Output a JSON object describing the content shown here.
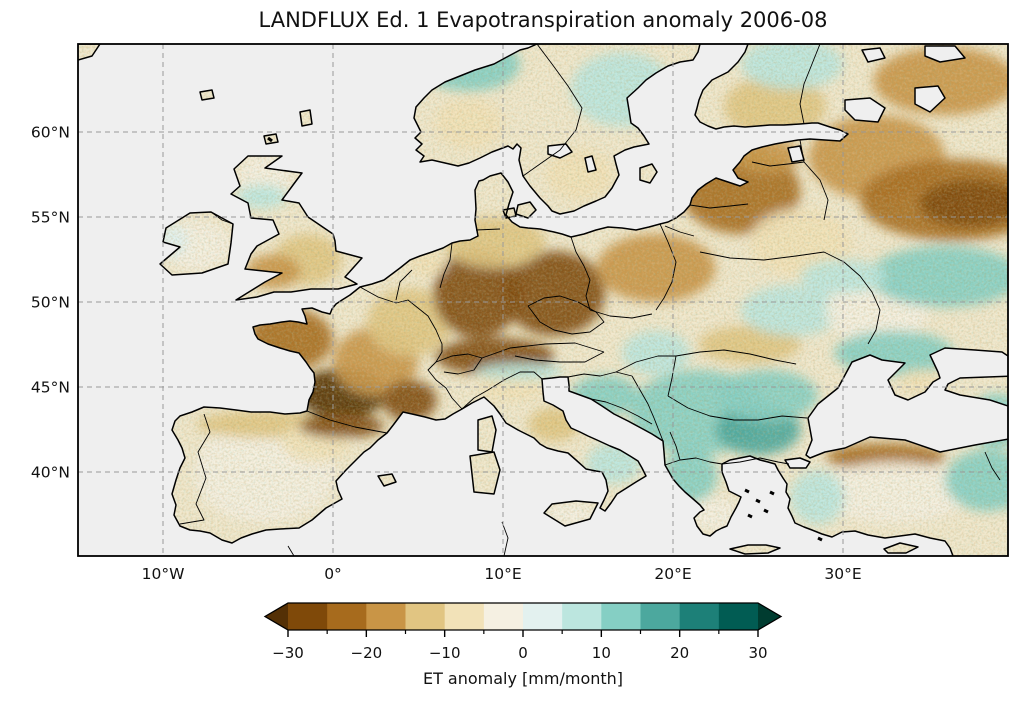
{
  "title": "LANDFLUX Ed. 1 Evapotranspiration anomaly 2006-08",
  "map": {
    "projection": "PlateCarree (lat/lon grid)",
    "extent": {
      "lon_min": -15.0,
      "lon_max": 39.7,
      "lat_min": 35.1,
      "lat_max": 65.2
    },
    "ocean_color": "#efefef",
    "land_base_color": "#f1e8cd",
    "coastline_color": "#000000",
    "gridline_color": "#999999",
    "y_ticks": [
      {
        "label": "60°N",
        "lat": 60
      },
      {
        "label": "55°N",
        "lat": 55
      },
      {
        "label": "50°N",
        "lat": 50
      },
      {
        "label": "45°N",
        "lat": 45
      },
      {
        "label": "40°N",
        "lat": 40
      }
    ],
    "x_ticks": [
      {
        "label": "10°W",
        "lon": -10
      },
      {
        "label": "0°",
        "lon": 0
      },
      {
        "label": "10°E",
        "lon": 10
      },
      {
        "label": "20°E",
        "lon": 20
      },
      {
        "label": "30°E",
        "lon": 30
      }
    ]
  },
  "colorbar": {
    "label": "ET anomaly [mm/month]",
    "orientation": "horizontal",
    "extend": "both",
    "bounds_min": -30,
    "bounds_max": 30,
    "segment_step": 5,
    "major_ticks": [
      -30,
      -20,
      -10,
      0,
      10,
      20,
      30
    ],
    "major_tick_labels": [
      "−30",
      "−20",
      "−10",
      "0",
      "10",
      "20",
      "30"
    ],
    "minor_ticks": [
      -25,
      -15,
      -5,
      5,
      15,
      25
    ],
    "colormap_name": "BrBG (discrete, 12 levels + arrows)",
    "colors": [
      "#543005",
      "#7f4909",
      "#a76b1d",
      "#c99546",
      "#e1c582",
      "#f2e2b8",
      "#f5f0e2",
      "#e3f1ef",
      "#bce6df",
      "#85cfc4",
      "#4ca89e",
      "#1d8078",
      "#015c53",
      "#003c30"
    ]
  },
  "chart_data": {
    "type": "heatmap",
    "subtype": "geographic-anomaly-raster",
    "title": "LANDFLUX Ed. 1 Evapotranspiration anomaly 2006-08",
    "units": "mm/month",
    "value_range": [
      -30,
      30
    ],
    "legend_position": "bottom",
    "grid": "dashed, lon every 10°, lat every 5°",
    "regions": [
      {
        "name": "Brittany / western France",
        "lon": -2.5,
        "lat": 47.8,
        "extent_deg": [
          2.5,
          1.8
        ],
        "anomaly": -22
      },
      {
        "name": "Southwest France (Aquitaine)",
        "lon": 0.5,
        "lat": 44.6,
        "extent_deg": [
          2.6,
          1.5
        ],
        "anomaly": -32
      },
      {
        "name": "Central France",
        "lon": 2.5,
        "lat": 46.5,
        "extent_deg": [
          2.5,
          2.0
        ],
        "anomaly": -18
      },
      {
        "name": "Northeast France",
        "lon": 4.5,
        "lat": 48.8,
        "extent_deg": [
          2.5,
          2.0
        ],
        "anomaly": -14
      },
      {
        "name": "Western Germany",
        "lon": 8.5,
        "lat": 50.5,
        "extent_deg": [
          2.6,
          2.6
        ],
        "anomaly": -27
      },
      {
        "name": "Eastern Germany / Czechia",
        "lon": 13.0,
        "lat": 50.5,
        "extent_deg": [
          3.0,
          2.5
        ],
        "anomaly": -27
      },
      {
        "name": "Alps",
        "lon": 9.5,
        "lat": 46.8,
        "extent_deg": [
          3.5,
          1.1
        ],
        "anomaly": -26
      },
      {
        "name": "Northern Germany / Denmark base",
        "lon": 9.5,
        "lat": 53.5,
        "extent_deg": [
          3.0,
          1.5
        ],
        "anomaly": -14
      },
      {
        "name": "Poland",
        "lon": 19.0,
        "lat": 52.0,
        "extent_deg": [
          3.5,
          2.0
        ],
        "anomaly": -16
      },
      {
        "name": "Baltic states",
        "lon": 24.0,
        "lat": 56.5,
        "extent_deg": [
          3.5,
          2.5
        ],
        "anomaly": -21
      },
      {
        "name": "Estonia",
        "lon": 25.5,
        "lat": 58.6,
        "extent_deg": [
          2.0,
          1.0
        ],
        "anomaly": -18
      },
      {
        "name": "Northwest Russia (St. Petersburg)",
        "lon": 32.0,
        "lat": 58.5,
        "extent_deg": [
          4.0,
          2.5
        ],
        "anomaly": -17
      },
      {
        "name": "Western Russia (Moscow region)",
        "lon": 36.5,
        "lat": 56.0,
        "extent_deg": [
          5.5,
          2.4
        ],
        "anomaly": -24
      },
      {
        "name": "Moscow-area core",
        "lon": 37.5,
        "lat": 55.8,
        "extent_deg": [
          3.0,
          1.4
        ],
        "anomaly": -28
      },
      {
        "name": "Southern Finland",
        "lon": 26.0,
        "lat": 61.5,
        "extent_deg": [
          3.0,
          1.8
        ],
        "anomaly": -15
      },
      {
        "name": "Northern Finland / Karelia",
        "lon": 27.0,
        "lat": 64.0,
        "extent_deg": [
          3.0,
          1.5
        ],
        "anomaly": 5
      },
      {
        "name": "Northeast Russia (top right)",
        "lon": 36.0,
        "lat": 63.0,
        "extent_deg": [
          4.2,
          2.0
        ],
        "anomaly": -19
      },
      {
        "name": "Central Norway",
        "lon": 8.0,
        "lat": 64.0,
        "extent_deg": [
          3.0,
          1.6
        ],
        "anomaly": 10
      },
      {
        "name": "Southern Norway",
        "lon": 8.0,
        "lat": 60.5,
        "extent_deg": [
          2.0,
          1.5
        ],
        "anomaly": -8
      },
      {
        "name": "Central-north Sweden",
        "lon": 17.0,
        "lat": 62.5,
        "extent_deg": [
          3.0,
          2.2
        ],
        "anomaly": 6
      },
      {
        "name": "Southern Sweden (Smaland)",
        "lon": 14.5,
        "lat": 57.5,
        "extent_deg": [
          2.0,
          1.5
        ],
        "anomaly": -8
      },
      {
        "name": "Central England",
        "lon": -1.5,
        "lat": 52.5,
        "extent_deg": [
          2.0,
          1.5
        ],
        "anomaly": -12
      },
      {
        "name": "Wales / SW England",
        "lon": -3.5,
        "lat": 51.8,
        "extent_deg": [
          1.6,
          1.0
        ],
        "anomaly": -16
      },
      {
        "name": "Scotland",
        "lon": -4.0,
        "lat": 57.2,
        "extent_deg": [
          1.6,
          1.5
        ],
        "anomaly": -5
      },
      {
        "name": "Scottish central belt",
        "lon": -4.2,
        "lat": 56.2,
        "extent_deg": [
          1.5,
          0.7
        ],
        "anomaly": 5
      },
      {
        "name": "Ireland",
        "lon": -8.0,
        "lat": 53.3,
        "extent_deg": [
          2.0,
          1.5
        ],
        "anomaly": -4
      },
      {
        "name": "Western Ireland",
        "lon": -9.5,
        "lat": 53.6,
        "extent_deg": [
          1.0,
          1.0
        ],
        "anomaly": 4
      },
      {
        "name": "Central Iberia",
        "lon": -4.0,
        "lat": 40.0,
        "extent_deg": [
          4.2,
          3.0
        ],
        "anomaly": -4
      },
      {
        "name": "Northern Iberia (Cantabria)",
        "lon": -4.0,
        "lat": 42.8,
        "extent_deg": [
          4.0,
          0.8
        ],
        "anomaly": -13
      },
      {
        "name": "Ebro / NE Spain",
        "lon": -1.0,
        "lat": 41.8,
        "extent_deg": [
          2.0,
          1.2
        ],
        "anomaly": -8
      },
      {
        "name": "SE France (Provence)",
        "lon": 4.5,
        "lat": 44.2,
        "extent_deg": [
          1.6,
          1.2
        ],
        "anomaly": -28
      },
      {
        "name": "Pyrenees",
        "lon": 0.5,
        "lat": 42.7,
        "extent_deg": [
          2.5,
          0.7
        ],
        "anomaly": -26
      },
      {
        "name": "Po valley",
        "lon": 10.5,
        "lat": 45.0,
        "extent_deg": [
          2.0,
          0.8
        ],
        "anomaly": -10
      },
      {
        "name": "Southern Alpine rim (Italy)",
        "lon": 11.0,
        "lat": 45.9,
        "extent_deg": [
          2.6,
          0.5
        ],
        "anomaly": 8
      },
      {
        "name": "Central Apennines",
        "lon": 13.0,
        "lat": 42.8,
        "extent_deg": [
          1.5,
          1.0
        ],
        "anomaly": -15
      },
      {
        "name": "Southern Italy",
        "lon": 16.5,
        "lat": 40.5,
        "extent_deg": [
          1.6,
          1.2
        ],
        "anomaly": 8
      },
      {
        "name": "Sicily",
        "lon": 14.0,
        "lat": 37.5,
        "extent_deg": [
          1.5,
          0.7
        ],
        "anomaly": -5
      },
      {
        "name": "Croatian coast",
        "lon": 16.0,
        "lat": 44.5,
        "extent_deg": [
          2.0,
          1.2
        ],
        "anomaly": 10
      },
      {
        "name": "Central Balkans (Serbia)",
        "lon": 21.5,
        "lat": 43.5,
        "extent_deg": [
          4.0,
          2.5
        ],
        "anomaly": 14
      },
      {
        "name": "Bulgaria highlands",
        "lon": 25.0,
        "lat": 42.5,
        "extent_deg": [
          2.5,
          1.5
        ],
        "anomaly": 18
      },
      {
        "name": "Northern Greece / Albania",
        "lon": 21.0,
        "lat": 39.8,
        "extent_deg": [
          1.6,
          1.6
        ],
        "anomaly": 10
      },
      {
        "name": "Peloponnese",
        "lon": 22.5,
        "lat": 37.5,
        "extent_deg": [
          1.5,
          1.0
        ],
        "anomaly": -3
      },
      {
        "name": "Southern Romania (Wallachia)",
        "lon": 25.5,
        "lat": 44.5,
        "extent_deg": [
          3.0,
          1.5
        ],
        "anomaly": 12
      },
      {
        "name": "Carpathian arc",
        "lon": 24.5,
        "lat": 47.5,
        "extent_deg": [
          3.0,
          1.1
        ],
        "anomaly": -15
      },
      {
        "name": "Hungary (Pannonia)",
        "lon": 19.0,
        "lat": 47.0,
        "extent_deg": [
          2.0,
          1.3
        ],
        "anomaly": 5
      },
      {
        "name": "Western Ukraine",
        "lon": 27.0,
        "lat": 49.5,
        "extent_deg": [
          3.0,
          1.5
        ],
        "anomaly": 8
      },
      {
        "name": "Central Ukraine",
        "lon": 32.0,
        "lat": 49.5,
        "extent_deg": [
          3.0,
          2.0
        ],
        "anomaly": -5
      },
      {
        "name": "Southern Ukraine / Black Sea coast",
        "lon": 33.0,
        "lat": 47.0,
        "extent_deg": [
          3.5,
          1.3
        ],
        "anomaly": 10
      },
      {
        "name": "Southern Russia steppe",
        "lon": 36.0,
        "lat": 51.5,
        "extent_deg": [
          4.5,
          1.8
        ],
        "anomaly": 10
      },
      {
        "name": "Belarus",
        "lon": 27.5,
        "lat": 53.5,
        "extent_deg": [
          3.0,
          2.0
        ],
        "anomaly": -8
      },
      {
        "name": "Belarus–Ukraine border (Polesia)",
        "lon": 30.0,
        "lat": 51.5,
        "extent_deg": [
          2.5,
          1.0
        ],
        "anomaly": 6
      },
      {
        "name": "Crimea",
        "lon": 34.5,
        "lat": 45.3,
        "extent_deg": [
          1.2,
          0.7
        ],
        "anomaly": -10
      },
      {
        "name": "Northern Turkey (Pontic coast)",
        "lon": 32.5,
        "lat": 40.9,
        "extent_deg": [
          3.5,
          0.8
        ],
        "anomaly": -24
      },
      {
        "name": "Central Anatolia",
        "lon": 33.0,
        "lat": 38.8,
        "extent_deg": [
          4.5,
          1.8
        ],
        "anomaly": -4
      },
      {
        "name": "Western Turkey",
        "lon": 28.5,
        "lat": 38.5,
        "extent_deg": [
          1.6,
          1.6
        ],
        "anomaly": 6
      },
      {
        "name": "Eastern Turkey",
        "lon": 38.5,
        "lat": 39.5,
        "extent_deg": [
          2.5,
          1.8
        ],
        "anomaly": 10
      },
      {
        "name": "Caucasus rim",
        "lon": 39.0,
        "lat": 43.0,
        "extent_deg": [
          1.6,
          1.6
        ],
        "anomaly": 12
      },
      {
        "name": "Maghreb coast (Algeria)",
        "lon": 3.0,
        "lat": 35.8,
        "extent_deg": [
          5.0,
          1.2
        ],
        "anomaly": -4
      },
      {
        "name": "Tunisia",
        "lon": 9.5,
        "lat": 36.0,
        "extent_deg": [
          1.6,
          0.8
        ],
        "anomaly": 5
      },
      {
        "name": "Netherlands",
        "lon": 5.5,
        "lat": 52.3,
        "extent_deg": [
          1.2,
          0.8
        ],
        "anomaly": -6
      }
    ]
  }
}
